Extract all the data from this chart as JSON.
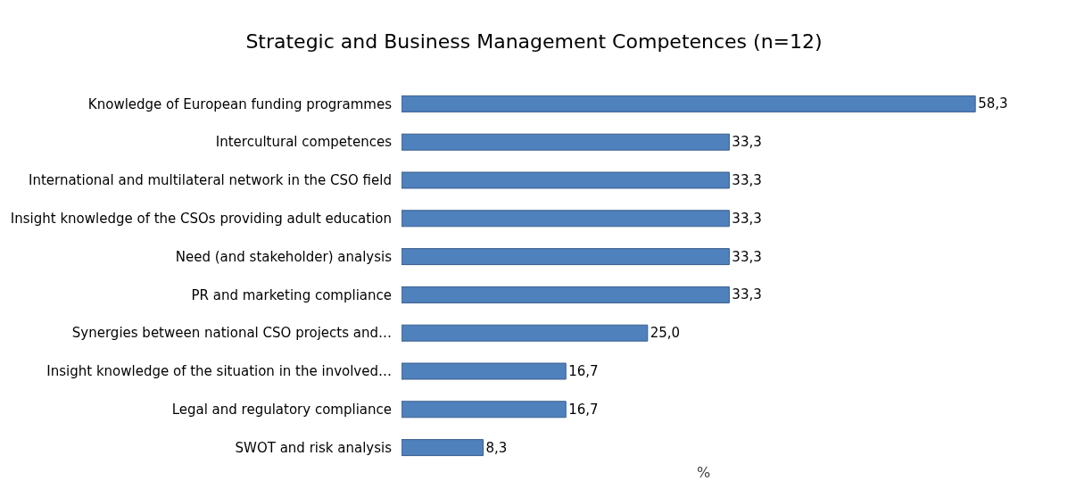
{
  "chart_data": {
    "type": "bar",
    "orientation": "horizontal",
    "title": "Strategic and Business Management Competences (n=12)",
    "xlabel": "%",
    "categories": [
      "Knowledge of European funding programmes",
      "Intercultural competences",
      "International and multilateral network in the CSO field",
      "Insight knowledge of the CSOs providing adult education",
      "Need (and stakeholder) analysis",
      "PR and marketing compliance",
      "Synergies between national CSO projects and…",
      "Insight knowledge of the situation in the involved…",
      "Legal and regulatory compliance",
      "SWOT and risk analysis"
    ],
    "values": [
      58.3,
      33.3,
      33.3,
      33.3,
      33.3,
      33.3,
      25.0,
      16.7,
      16.7,
      8.3
    ],
    "value_labels": [
      "58,3",
      "33,3",
      "33,3",
      "33,3",
      "33,3",
      "33,3",
      "25,0",
      "16,7",
      "16,7",
      "8,3"
    ],
    "color": "#4f81bd"
  }
}
